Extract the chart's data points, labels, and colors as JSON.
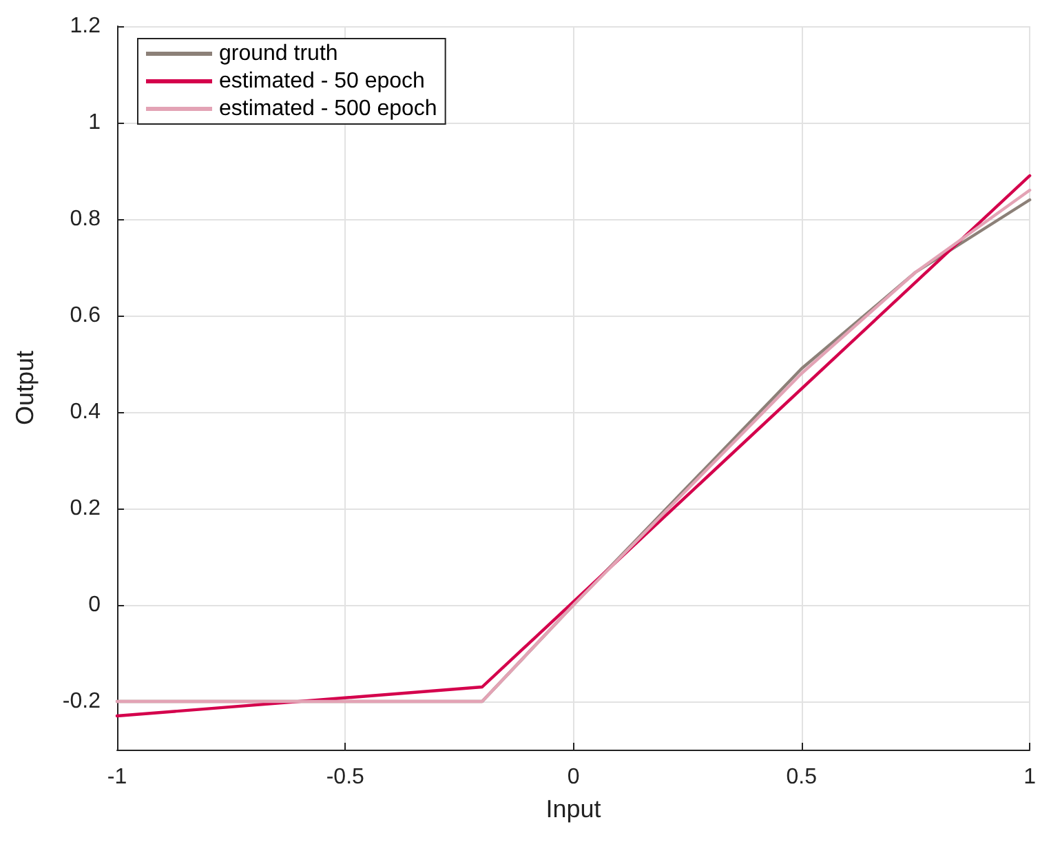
{
  "chart_data": {
    "type": "line",
    "xlabel": "Input",
    "ylabel": "Output",
    "xlim": [
      -1,
      1
    ],
    "xticks": [
      -1,
      -0.5,
      0,
      0.5,
      1
    ],
    "ylim": [
      -0.3,
      1.2
    ],
    "yticks": [
      -0.2,
      0,
      0.2,
      0.4,
      0.6,
      0.8,
      1,
      1.2
    ],
    "grid": true,
    "legend": "top left",
    "marker": "none",
    "line_style": "solid",
    "series": [
      {
        "name": "ground truth",
        "color": "#8c8078",
        "x": [
          -1,
          -0.2,
          0,
          0.5,
          0.75,
          1
        ],
        "values": [
          -0.2,
          -0.2,
          0,
          0.49,
          0.69,
          0.84
        ]
      },
      {
        "name": "estimated - 50 epoch",
        "color": "#d4004c",
        "x": [
          -1,
          -0.2,
          1
        ],
        "values": [
          -0.23,
          -0.17,
          0.89
        ]
      },
      {
        "name": "estimated - 500 epoch",
        "color": "#e3a3b5",
        "x": [
          -1,
          -0.2,
          0,
          0.5,
          0.75,
          1
        ],
        "values": [
          -0.2,
          -0.2,
          0,
          0.48,
          0.69,
          0.86
        ]
      }
    ]
  }
}
